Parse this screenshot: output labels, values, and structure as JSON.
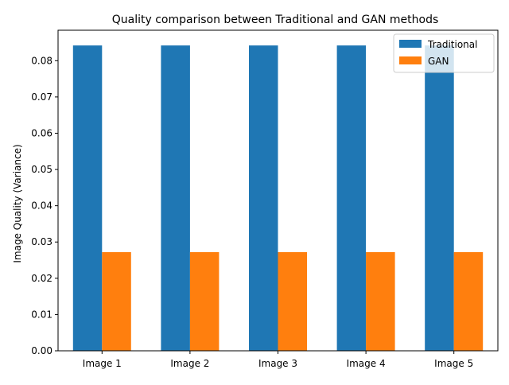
{
  "chart_data": {
    "type": "bar",
    "title": "Quality comparison between Traditional and GAN methods",
    "xlabel": "",
    "ylabel": "Image Quality (Variance)",
    "categories": [
      "Image 1",
      "Image 2",
      "Image 3",
      "Image 4",
      "Image 5"
    ],
    "series": [
      {
        "name": "Traditional",
        "color": "#1f77b4",
        "values": [
          0.0842,
          0.0842,
          0.0842,
          0.0842,
          0.0842
        ]
      },
      {
        "name": "GAN",
        "color": "#ff7f0e",
        "values": [
          0.0272,
          0.0272,
          0.0272,
          0.0272,
          0.0272
        ]
      }
    ],
    "ylim": [
      0,
      0.0884
    ],
    "yticks": [
      "0.00",
      "0.01",
      "0.02",
      "0.03",
      "0.04",
      "0.05",
      "0.06",
      "0.07",
      "0.08"
    ],
    "grid": false,
    "legend_position": "top-right"
  }
}
